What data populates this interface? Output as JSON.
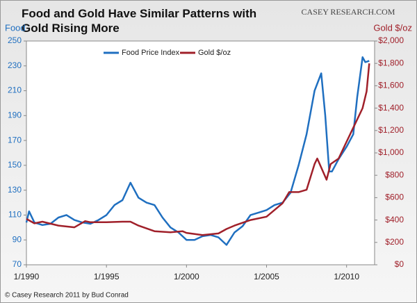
{
  "chart_data": {
    "type": "line",
    "title": "Food and Gold Have Similar Patterns with Gold Rising More",
    "logo": "CASEY RESEARCH.COM",
    "source": "© Casey Research 2011 by Bud Conrad",
    "y_label": "Food",
    "y2_label": "Gold $/oz",
    "xlim": [
      "1/1990",
      "10/2011"
    ],
    "xticks": [
      "1/1990",
      "1/1995",
      "1/2000",
      "1/2005",
      "1/2010"
    ],
    "ylim": [
      70,
      250
    ],
    "yticks": [
      70,
      90,
      110,
      130,
      150,
      170,
      190,
      210,
      230,
      250
    ],
    "y2lim": [
      0,
      2000
    ],
    "y2ticks": [
      {
        "value": 0,
        "label": "$0"
      },
      {
        "value": 200,
        "label": "$200"
      },
      {
        "value": 400,
        "label": "$400"
      },
      {
        "value": 600,
        "label": "$600"
      },
      {
        "value": 800,
        "label": "$800"
      },
      {
        "value": 1000,
        "label": "$1,000"
      },
      {
        "value": 1200,
        "label": "$1,200"
      },
      {
        "value": 1400,
        "label": "$1,400"
      },
      {
        "value": 1600,
        "label": "$1,600"
      },
      {
        "value": 1800,
        "label": "$1,800"
      },
      {
        "value": 2000,
        "label": "$2,000"
      }
    ],
    "series": [
      {
        "name": "Food Price Index",
        "color": "#1f6fc0",
        "axis": "y",
        "x": [
          "1/1990",
          "3/1990",
          "7/1990",
          "1/1991",
          "7/1991",
          "1/1992",
          "7/1992",
          "1/1993",
          "7/1993",
          "1/1994",
          "7/1994",
          "1/1995",
          "7/1995",
          "1/1996",
          "7/1996",
          "10/1996",
          "1/1997",
          "7/1997",
          "1/1998",
          "7/1998",
          "1/1999",
          "7/1999",
          "1/2000",
          "7/2000",
          "1/2001",
          "7/2001",
          "1/2002",
          "7/2002",
          "1/2003",
          "7/2003",
          "1/2004",
          "7/2004",
          "1/2005",
          "7/2005",
          "1/2006",
          "7/2006",
          "1/2007",
          "7/2007",
          "1/2008",
          "6/2008",
          "9/2008",
          "12/2008",
          "2/2009",
          "7/2009",
          "1/2010",
          "6/2010",
          "9/2010",
          "1/2011",
          "3/2011",
          "6/2011"
        ],
        "values": [
          104,
          113,
          104,
          102,
          103,
          108,
          110,
          106,
          104,
          103,
          106,
          110,
          118,
          122,
          136,
          130,
          124,
          120,
          118,
          108,
          100,
          96,
          90,
          90,
          93,
          94,
          92,
          86,
          96,
          101,
          110,
          112,
          114,
          118,
          120,
          128,
          150,
          175,
          210,
          224,
          190,
          145,
          145,
          155,
          165,
          175,
          205,
          237,
          233,
          234
        ]
      },
      {
        "name": "Gold $/oz",
        "color": "#a0202a",
        "axis": "y2",
        "x": [
          "1/1990",
          "7/1990",
          "1/1991",
          "1/1992",
          "1/1993",
          "9/1993",
          "1/1994",
          "1/1995",
          "1/1996",
          "7/1996",
          "1/1997",
          "1/1998",
          "1/1999",
          "10/1999",
          "1/2000",
          "1/2001",
          "1/2002",
          "7/2002",
          "1/2003",
          "1/2004",
          "1/2005",
          "1/2006",
          "6/2006",
          "1/2007",
          "7/2007",
          "1/2008",
          "3/2008",
          "10/2008",
          "1/2009",
          "7/2009",
          "1/2010",
          "7/2010",
          "1/2011",
          "4/2011",
          "6/2011"
        ],
        "values": [
          410,
          370,
          385,
          350,
          335,
          390,
          380,
          380,
          385,
          385,
          350,
          300,
          290,
          300,
          285,
          265,
          280,
          320,
          350,
          400,
          430,
          550,
          650,
          650,
          670,
          900,
          950,
          760,
          900,
          950,
          1100,
          1250,
          1400,
          1550,
          1800
        ]
      }
    ]
  }
}
